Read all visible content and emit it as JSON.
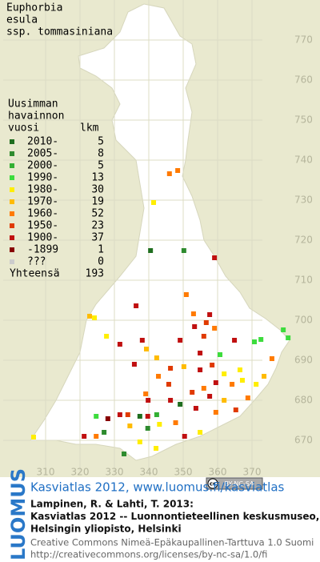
{
  "map": {
    "title_lines": [
      "Euphorbia",
      "esula",
      "ssp. tommasiniana"
    ],
    "xticks": [
      310,
      320,
      330,
      340,
      350,
      360,
      370
    ],
    "yticks": [
      670,
      680,
      690,
      700,
      710,
      720,
      730,
      740,
      750,
      760,
      770
    ],
    "xlim": [
      300,
      380
    ],
    "ylim": [
      660,
      780
    ],
    "dots": [
      {
        "x": 346.0,
        "y": 736.6,
        "period": 6
      },
      {
        "x": 348.4,
        "y": 737.4,
        "period": 6
      },
      {
        "x": 341.4,
        "y": 729.4,
        "period": 4
      },
      {
        "x": 340.5,
        "y": 717.4,
        "period": 0
      },
      {
        "x": 350.2,
        "y": 717.4,
        "period": 1
      },
      {
        "x": 359.1,
        "y": 715.6,
        "period": 8
      },
      {
        "x": 350.9,
        "y": 706.4,
        "period": 6
      },
      {
        "x": 336.3,
        "y": 703.6,
        "period": 8
      },
      {
        "x": 353.0,
        "y": 701.6,
        "period": 6
      },
      {
        "x": 357.7,
        "y": 701.4,
        "period": 8
      },
      {
        "x": 322.8,
        "y": 701.0,
        "period": 5
      },
      {
        "x": 324.2,
        "y": 700.6,
        "period": 4
      },
      {
        "x": 353.3,
        "y": 698.4,
        "period": 8
      },
      {
        "x": 356.7,
        "y": 699.4,
        "period": 7
      },
      {
        "x": 359.1,
        "y": 698.0,
        "period": 6
      },
      {
        "x": 379.1,
        "y": 697.6,
        "period": 3
      },
      {
        "x": 380.5,
        "y": 695.6,
        "period": 3
      },
      {
        "x": 370.7,
        "y": 694.6,
        "period": 3
      },
      {
        "x": 372.6,
        "y": 695.2,
        "period": 3
      },
      {
        "x": 338.1,
        "y": 695.0,
        "period": 8
      },
      {
        "x": 339.3,
        "y": 692.8,
        "period": 5
      },
      {
        "x": 327.7,
        "y": 696.0,
        "period": 4
      },
      {
        "x": 331.6,
        "y": 694.0,
        "period": 8
      },
      {
        "x": 349.1,
        "y": 695.0,
        "period": 8
      },
      {
        "x": 356.0,
        "y": 696.0,
        "period": 7
      },
      {
        "x": 364.9,
        "y": 695.0,
        "period": 8
      },
      {
        "x": 360.7,
        "y": 691.4,
        "period": 3
      },
      {
        "x": 375.8,
        "y": 690.4,
        "period": 6
      },
      {
        "x": 335.8,
        "y": 689.0,
        "period": 8
      },
      {
        "x": 342.8,
        "y": 686.0,
        "period": 6
      },
      {
        "x": 346.3,
        "y": 688.0,
        "period": 7
      },
      {
        "x": 350.2,
        "y": 688.4,
        "period": 5
      },
      {
        "x": 354.9,
        "y": 687.6,
        "period": 8
      },
      {
        "x": 361.9,
        "y": 686.6,
        "period": 4
      },
      {
        "x": 366.5,
        "y": 687.6,
        "period": 4
      },
      {
        "x": 367.2,
        "y": 685.0,
        "period": 4
      },
      {
        "x": 364.2,
        "y": 684.0,
        "period": 6
      },
      {
        "x": 359.5,
        "y": 684.4,
        "period": 8
      },
      {
        "x": 356.0,
        "y": 683.0,
        "period": 6
      },
      {
        "x": 352.6,
        "y": 682.0,
        "period": 7
      },
      {
        "x": 357.7,
        "y": 681.0,
        "period": 8
      },
      {
        "x": 361.9,
        "y": 680.0,
        "period": 5
      },
      {
        "x": 368.8,
        "y": 680.6,
        "period": 6
      },
      {
        "x": 371.2,
        "y": 684.0,
        "period": 4
      },
      {
        "x": 373.5,
        "y": 686.0,
        "period": 5
      },
      {
        "x": 339.1,
        "y": 681.6,
        "period": 6
      },
      {
        "x": 346.3,
        "y": 680.0,
        "period": 8
      },
      {
        "x": 349.1,
        "y": 679.0,
        "period": 0
      },
      {
        "x": 353.7,
        "y": 678.0,
        "period": 8
      },
      {
        "x": 359.5,
        "y": 677.0,
        "period": 6
      },
      {
        "x": 365.3,
        "y": 677.6,
        "period": 7
      },
      {
        "x": 331.6,
        "y": 676.4,
        "period": 8
      },
      {
        "x": 333.9,
        "y": 676.4,
        "period": 7
      },
      {
        "x": 337.4,
        "y": 676.0,
        "period": 0
      },
      {
        "x": 339.7,
        "y": 676.0,
        "period": 8
      },
      {
        "x": 342.3,
        "y": 676.4,
        "period": 2
      },
      {
        "x": 328.1,
        "y": 675.4,
        "period": 9
      },
      {
        "x": 324.7,
        "y": 676.0,
        "period": 3
      },
      {
        "x": 334.5,
        "y": 673.6,
        "period": 5
      },
      {
        "x": 339.7,
        "y": 673.0,
        "period": 1
      },
      {
        "x": 343.1,
        "y": 674.0,
        "period": 4
      },
      {
        "x": 347.8,
        "y": 674.4,
        "period": 6
      },
      {
        "x": 354.9,
        "y": 672.0,
        "period": 4
      },
      {
        "x": 350.4,
        "y": 671.0,
        "period": 8
      },
      {
        "x": 324.7,
        "y": 671.0,
        "period": 6
      },
      {
        "x": 321.2,
        "y": 671.0,
        "period": 8
      },
      {
        "x": 327.0,
        "y": 672.0,
        "period": 1
      },
      {
        "x": 337.4,
        "y": 669.6,
        "period": 4
      },
      {
        "x": 342.1,
        "y": 668.0,
        "period": 4
      },
      {
        "x": 332.8,
        "y": 666.6,
        "period": 1
      },
      {
        "x": 306.5,
        "y": 670.8,
        "period": 4
      },
      {
        "x": 339.8,
        "y": 680.0,
        "period": 8
      },
      {
        "x": 345.8,
        "y": 684.0,
        "period": 7
      },
      {
        "x": 342.3,
        "y": 690.6,
        "period": 5
      },
      {
        "x": 354.9,
        "y": 691.8,
        "period": 8
      },
      {
        "x": 358.4,
        "y": 688.8,
        "period": 7
      }
    ]
  },
  "legend": {
    "header_lines": [
      "Uusimman",
      "havainnon"
    ],
    "period_heading": "vuosi",
    "count_heading": "lkm",
    "rows": [
      {
        "label": "2010-",
        "count": 5,
        "color": "#1f6e1f"
      },
      {
        "label": "2005-",
        "count": 8,
        "color": "#2e8b2e"
      },
      {
        "label": "2000-",
        "count": 5,
        "color": "#33b033"
      },
      {
        "label": "1990-",
        "count": 13,
        "color": "#3ddc3d"
      },
      {
        "label": "1980-",
        "count": 30,
        "color": "#ffee00"
      },
      {
        "label": "1970-",
        "count": 19,
        "color": "#ffbb00"
      },
      {
        "label": "1960-",
        "count": 52,
        "color": "#ff7a00"
      },
      {
        "label": "1950-",
        "count": 23,
        "color": "#e03a00"
      },
      {
        "label": "1900-",
        "count": 37,
        "color": "#c01010"
      },
      {
        "label": "-1899",
        "count": 1,
        "color": "#880000"
      },
      {
        "label": "???",
        "count": 0,
        "color": "#cccccc"
      }
    ],
    "total_label": "Yhteensä",
    "total": 193
  },
  "footer": {
    "logo": "LUOMUS",
    "badge_cc": "cc",
    "badge_license": "BY-NC-SA",
    "link": "Kasviatlas 2012, www.luomus.fi/kasviatlas",
    "citation_lines": [
      "Lampinen, R. & Lahti, T. 2013:",
      "Kasviatlas 2012 -- Luonnontieteellinen keskusmuseo,",
      "Helsingin yliopisto, Helsinki"
    ],
    "license_lines": [
      "Creative Commons Nimeä-Epäkaupallinen-Tarttuva 1.0 Suomi",
      "http://creativecommons.org/licenses/by-nc-sa/1.0/fi"
    ]
  }
}
